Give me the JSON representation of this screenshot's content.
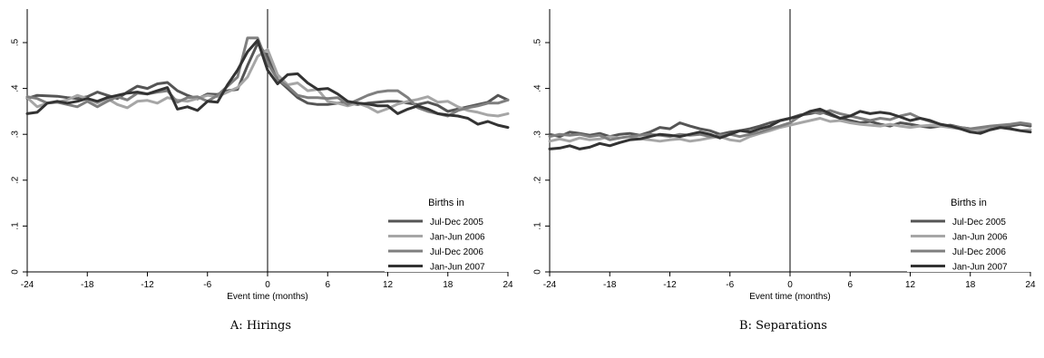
{
  "chart_data": [
    {
      "type": "line",
      "caption": "A: Hirings",
      "xlabel": "Event time (months)",
      "ylabel": "",
      "xlim": [
        -24,
        24
      ],
      "ylim": [
        0,
        0.5
      ],
      "xticks": [
        "-24",
        "-18",
        "-12",
        "-6",
        "0",
        "6",
        "12",
        "18",
        "24"
      ],
      "yticks": [
        "0",
        ".1",
        ".2",
        ".3",
        ".4",
        ".5"
      ],
      "vline_x": 0,
      "legend": {
        "title": "Births in",
        "position": "bottom-right"
      },
      "x": [
        -24,
        -23,
        -22,
        -21,
        -20,
        -19,
        -18,
        -17,
        -16,
        -15,
        -14,
        -13,
        -12,
        -11,
        -10,
        -9,
        -8,
        -7,
        -6,
        -5,
        -4,
        -3,
        -2,
        -1,
        0,
        1,
        2,
        3,
        4,
        5,
        6,
        7,
        8,
        9,
        10,
        11,
        12,
        13,
        14,
        15,
        16,
        17,
        18,
        19,
        20,
        21,
        22,
        23,
        24
      ],
      "series": [
        {
          "name": "Jul-Dec 2005",
          "color": "#555555",
          "values": [
            0.378,
            0.385,
            0.384,
            0.383,
            0.38,
            0.378,
            0.382,
            0.392,
            0.385,
            0.378,
            0.392,
            0.405,
            0.4,
            0.41,
            0.413,
            0.395,
            0.385,
            0.377,
            0.388,
            0.387,
            0.395,
            0.398,
            0.45,
            0.498,
            0.47,
            0.42,
            0.4,
            0.38,
            0.368,
            0.365,
            0.365,
            0.368,
            0.368,
            0.365,
            0.368,
            0.37,
            0.372,
            0.372,
            0.368,
            0.365,
            0.37,
            0.363,
            0.35,
            0.355,
            0.36,
            0.365,
            0.37,
            0.385,
            0.375
          ]
        },
        {
          "name": "Jan-Jun 2006",
          "color": "#a6a6a6",
          "values": [
            0.38,
            0.36,
            0.368,
            0.37,
            0.375,
            0.385,
            0.378,
            0.368,
            0.378,
            0.365,
            0.358,
            0.372,
            0.374,
            0.368,
            0.38,
            0.375,
            0.372,
            0.378,
            0.385,
            0.382,
            0.392,
            0.402,
            0.425,
            0.47,
            0.485,
            0.43,
            0.408,
            0.412,
            0.395,
            0.398,
            0.372,
            0.368,
            0.362,
            0.368,
            0.36,
            0.348,
            0.356,
            0.366,
            0.372,
            0.376,
            0.382,
            0.37,
            0.372,
            0.36,
            0.352,
            0.348,
            0.342,
            0.34,
            0.345
          ]
        },
        {
          "name": "Jul-Dec 2006",
          "color": "#7f7f7f",
          "values": [
            0.382,
            0.378,
            0.368,
            0.37,
            0.365,
            0.36,
            0.372,
            0.36,
            0.372,
            0.382,
            0.375,
            0.39,
            0.388,
            0.392,
            0.395,
            0.37,
            0.38,
            0.382,
            0.372,
            0.385,
            0.405,
            0.425,
            0.51,
            0.51,
            0.455,
            0.42,
            0.405,
            0.385,
            0.38,
            0.38,
            0.378,
            0.38,
            0.365,
            0.375,
            0.385,
            0.392,
            0.395,
            0.395,
            0.38,
            0.358,
            0.35,
            0.345,
            0.34,
            0.352,
            0.358,
            0.362,
            0.368,
            0.368,
            0.375
          ]
        },
        {
          "name": "Jan-Jun 2007",
          "color": "#333333",
          "values": [
            0.345,
            0.348,
            0.368,
            0.372,
            0.368,
            0.372,
            0.378,
            0.372,
            0.38,
            0.385,
            0.39,
            0.392,
            0.388,
            0.395,
            0.402,
            0.355,
            0.36,
            0.352,
            0.372,
            0.37,
            0.408,
            0.44,
            0.48,
            0.505,
            0.44,
            0.41,
            0.43,
            0.432,
            0.412,
            0.398,
            0.4,
            0.388,
            0.372,
            0.368,
            0.366,
            0.362,
            0.362,
            0.345,
            0.355,
            0.362,
            0.355,
            0.345,
            0.342,
            0.34,
            0.335,
            0.322,
            0.328,
            0.32,
            0.315
          ]
        }
      ]
    },
    {
      "type": "line",
      "caption": "B: Separations",
      "xlabel": "Event time (months)",
      "ylabel": "",
      "xlim": [
        -24,
        24
      ],
      "ylim": [
        0,
        0.5
      ],
      "xticks": [
        "-24",
        "-18",
        "-12",
        "-6",
        "0",
        "6",
        "12",
        "18",
        "24"
      ],
      "yticks": [
        "0",
        ".1",
        ".2",
        ".3",
        ".4",
        ".5"
      ],
      "vline_x": 0,
      "legend": {
        "title": "Births in",
        "position": "bottom-right"
      },
      "x": [
        -24,
        -23,
        -22,
        -21,
        -20,
        -19,
        -18,
        -17,
        -16,
        -15,
        -14,
        -13,
        -12,
        -11,
        -10,
        -9,
        -8,
        -7,
        -6,
        -5,
        -4,
        -3,
        -2,
        -1,
        0,
        1,
        2,
        3,
        4,
        5,
        6,
        7,
        8,
        9,
        10,
        11,
        12,
        13,
        14,
        15,
        16,
        17,
        18,
        19,
        20,
        21,
        22,
        23,
        24
      ],
      "series": [
        {
          "name": "Jul-Dec 2005",
          "color": "#555555",
          "values": [
            0.3,
            0.295,
            0.305,
            0.302,
            0.298,
            0.302,
            0.295,
            0.3,
            0.302,
            0.298,
            0.305,
            0.315,
            0.312,
            0.325,
            0.318,
            0.312,
            0.308,
            0.3,
            0.305,
            0.308,
            0.312,
            0.318,
            0.325,
            0.33,
            0.335,
            0.342,
            0.345,
            0.35,
            0.342,
            0.335,
            0.33,
            0.325,
            0.328,
            0.322,
            0.318,
            0.325,
            0.322,
            0.318,
            0.315,
            0.318,
            0.32,
            0.315,
            0.312,
            0.308,
            0.31,
            0.315,
            0.318,
            0.322,
            0.318
          ]
        },
        {
          "name": "Jan-Jun 2006",
          "color": "#a6a6a6",
          "values": [
            0.285,
            0.29,
            0.285,
            0.292,
            0.288,
            0.29,
            0.295,
            0.292,
            0.295,
            0.29,
            0.288,
            0.285,
            0.288,
            0.29,
            0.285,
            0.288,
            0.292,
            0.295,
            0.288,
            0.285,
            0.295,
            0.302,
            0.308,
            0.315,
            0.32,
            0.325,
            0.33,
            0.335,
            0.328,
            0.33,
            0.325,
            0.322,
            0.32,
            0.318,
            0.322,
            0.318,
            0.315,
            0.318,
            0.32,
            0.318,
            0.315,
            0.312,
            0.308,
            0.31,
            0.312,
            0.315,
            0.312,
            0.308,
            0.31
          ]
        },
        {
          "name": "Jul-Dec 2006",
          "color": "#7f7f7f",
          "values": [
            0.295,
            0.3,
            0.298,
            0.3,
            0.295,
            0.298,
            0.288,
            0.292,
            0.295,
            0.298,
            0.3,
            0.298,
            0.295,
            0.3,
            0.298,
            0.3,
            0.295,
            0.298,
            0.3,
            0.295,
            0.3,
            0.305,
            0.312,
            0.318,
            0.325,
            0.34,
            0.35,
            0.345,
            0.352,
            0.345,
            0.34,
            0.335,
            0.33,
            0.335,
            0.332,
            0.34,
            0.345,
            0.335,
            0.328,
            0.322,
            0.318,
            0.315,
            0.312,
            0.315,
            0.318,
            0.32,
            0.322,
            0.325,
            0.322
          ]
        },
        {
          "name": "Jan-Jun 2007",
          "color": "#333333",
          "values": [
            0.268,
            0.27,
            0.275,
            0.268,
            0.272,
            0.28,
            0.275,
            0.282,
            0.288,
            0.29,
            0.295,
            0.3,
            0.298,
            0.295,
            0.3,
            0.305,
            0.3,
            0.292,
            0.3,
            0.308,
            0.305,
            0.312,
            0.318,
            0.33,
            0.335,
            0.34,
            0.35,
            0.355,
            0.345,
            0.335,
            0.34,
            0.35,
            0.345,
            0.348,
            0.345,
            0.338,
            0.33,
            0.335,
            0.33,
            0.322,
            0.318,
            0.312,
            0.305,
            0.302,
            0.31,
            0.315,
            0.312,
            0.308,
            0.305
          ]
        }
      ]
    }
  ]
}
